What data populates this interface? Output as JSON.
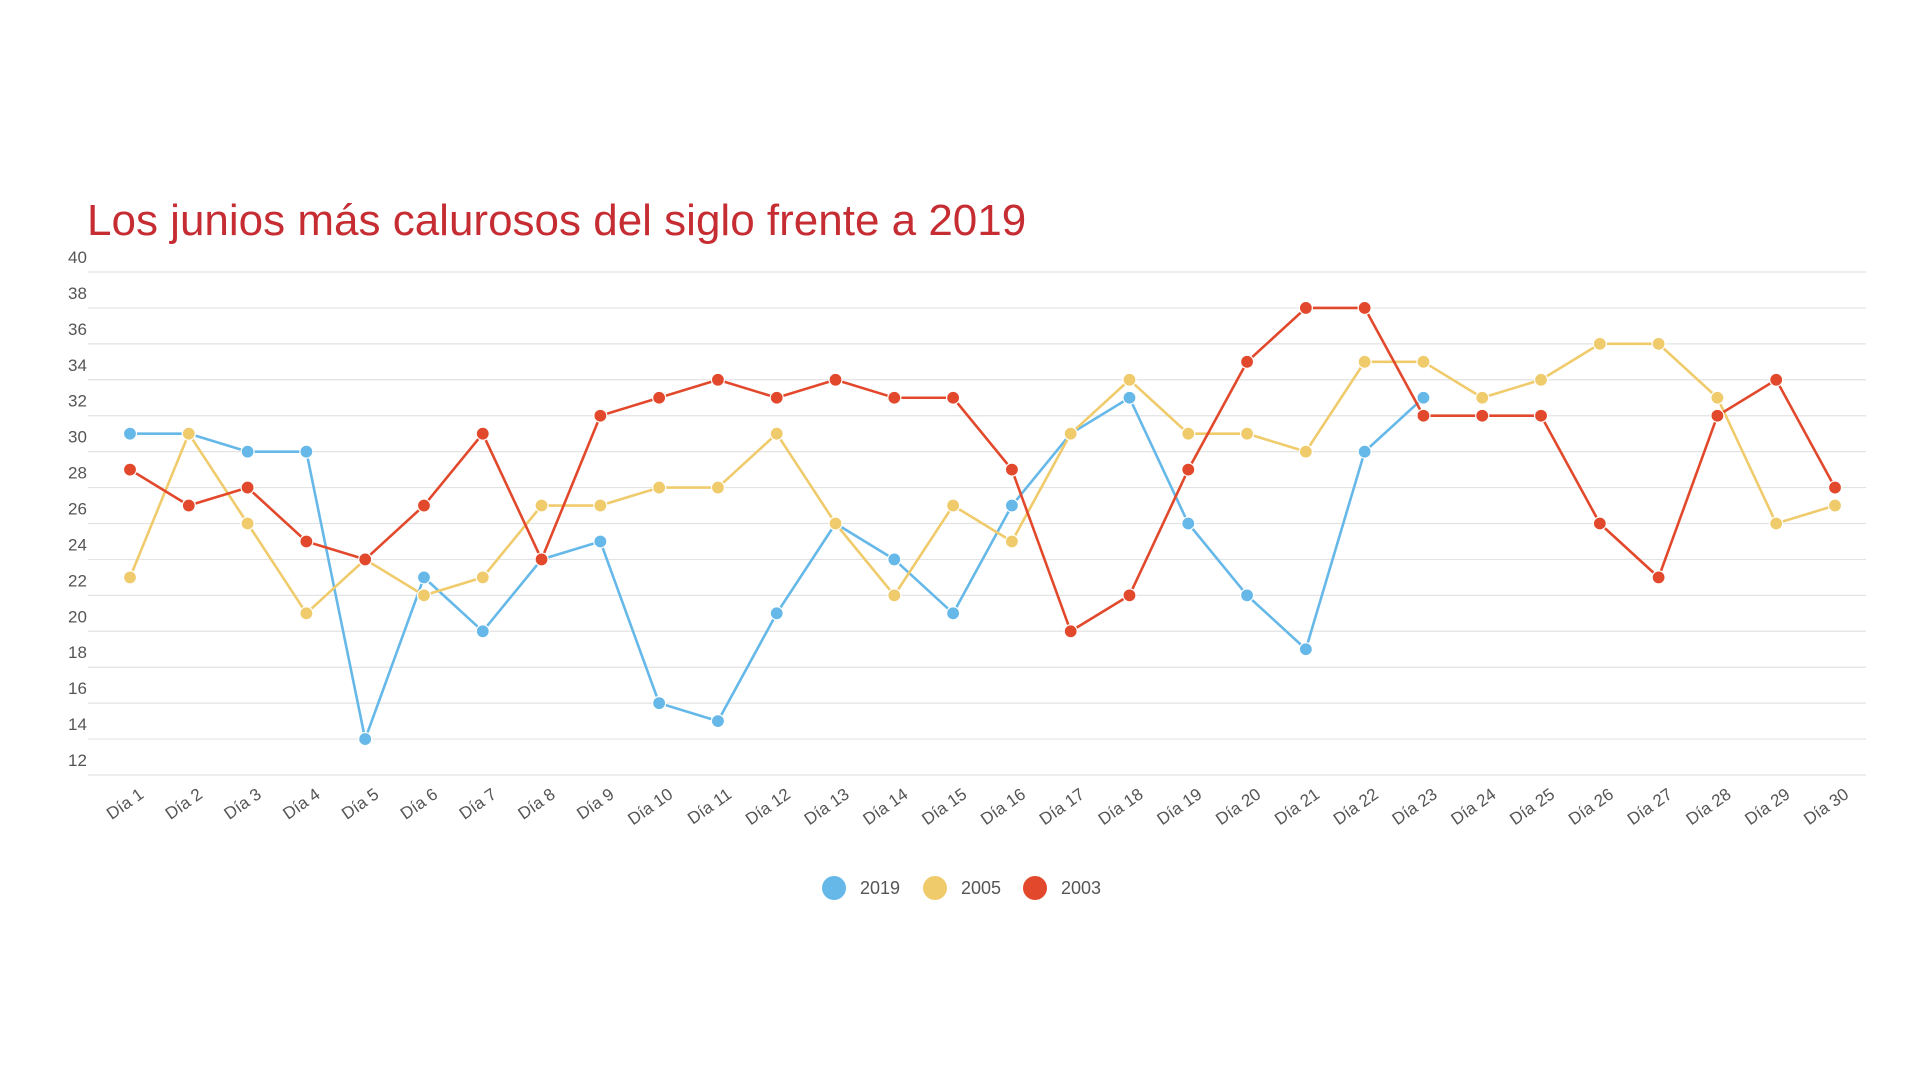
{
  "colors": {
    "title": "#c62d33",
    "grid": "#e3e3e3",
    "tick_text": "#555555"
  },
  "chart_data": {
    "type": "line",
    "title": "Los junios más calurosos del siglo frente a 2019",
    "xlabel": "",
    "ylabel": "",
    "ylim": [
      12,
      40
    ],
    "yticks": [
      12,
      14,
      16,
      18,
      20,
      22,
      24,
      26,
      28,
      30,
      32,
      34,
      36,
      38,
      40
    ],
    "grid": true,
    "legend_position": "bottom-center",
    "categories": [
      "Día 1",
      "Día 2",
      "Día 3",
      "Día 4",
      "Día 5",
      "Día 6",
      "Día 7",
      "Día 8",
      "Día 9",
      "Día 10",
      "Día 11",
      "Día 12",
      "Día 13",
      "Día 14",
      "Día 15",
      "Día 16",
      "Día 17",
      "Día 18",
      "Día 19",
      "Día 20",
      "Día 21",
      "Día 22",
      "Día 23",
      "Día 24",
      "Día 25",
      "Día 26",
      "Día 27",
      "Día 28",
      "Día 29",
      "Día 30"
    ],
    "series": [
      {
        "name": "2019",
        "color": "#66b8e8",
        "values": [
          31,
          31,
          30,
          30,
          14,
          23,
          20,
          24,
          25,
          16,
          15,
          21,
          26,
          24,
          21,
          27,
          31,
          33,
          26,
          22,
          19,
          30,
          33,
          null,
          null,
          null,
          null,
          null,
          null,
          null
        ]
      },
      {
        "name": "2005",
        "color": "#f0cb6c",
        "values": [
          23,
          31,
          26,
          21,
          24,
          22,
          23,
          27,
          27,
          28,
          28,
          31,
          26,
          22,
          27,
          25,
          31,
          34,
          31,
          31,
          30,
          35,
          35,
          33,
          34,
          36,
          36,
          33,
          26,
          27
        ]
      },
      {
        "name": "2003",
        "color": "#e2492c",
        "values": [
          29,
          27,
          28,
          25,
          24,
          27,
          31,
          24,
          32,
          33,
          34,
          33,
          34,
          33,
          33,
          29,
          20,
          22,
          29,
          35,
          38,
          38,
          32,
          32,
          32,
          26,
          23,
          32,
          34,
          28
        ]
      }
    ]
  }
}
